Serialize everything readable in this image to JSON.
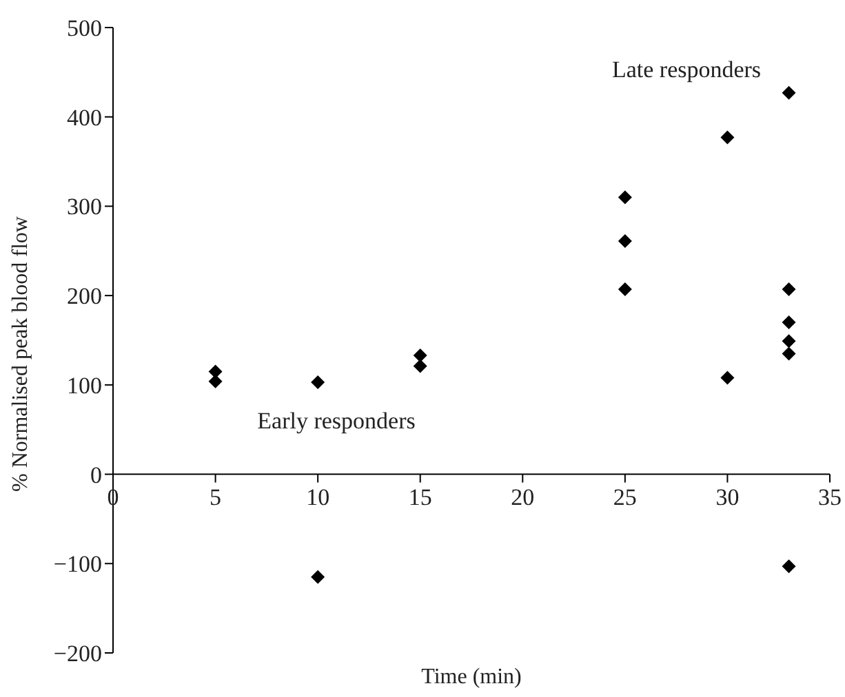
{
  "chart_data": {
    "type": "scatter",
    "xlabel": "Time (min)",
    "ylabel": "% Normalised peak blood flow",
    "x": [
      5,
      5,
      10,
      10,
      15,
      15,
      25,
      25,
      25,
      30,
      30,
      33,
      33,
      33,
      33,
      33,
      33
    ],
    "values": [
      115,
      104,
      103,
      -115,
      133,
      121,
      310,
      261,
      207,
      377,
      108,
      427,
      207,
      170,
      149,
      135,
      -103
    ],
    "color": "#000000",
    "marker": "diamond",
    "xlim": [
      0,
      35
    ],
    "xticks": [
      0,
      5,
      10,
      15,
      20,
      25,
      30,
      35
    ],
    "ylim": [
      -200,
      500
    ],
    "yticks": [
      -200,
      -100,
      0,
      100,
      200,
      300,
      400,
      500
    ],
    "grid": false,
    "legend": false,
    "annotations": [
      "Late responders",
      "Early responders"
    ]
  }
}
